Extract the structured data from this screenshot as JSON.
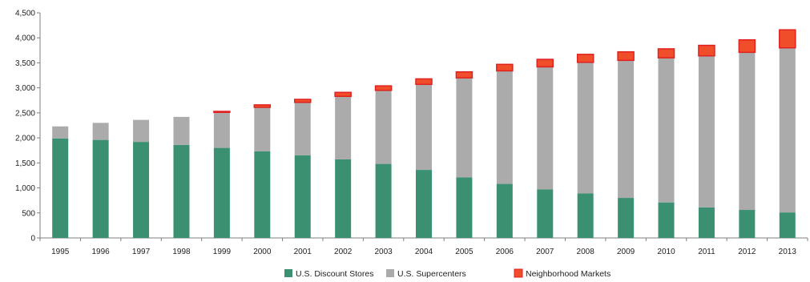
{
  "chart_data": {
    "type": "bar",
    "stacked": true,
    "title": "",
    "xlabel": "",
    "ylabel": "",
    "ylim": [
      0,
      4500
    ],
    "yticks": [
      0,
      500,
      1000,
      1500,
      2000,
      2500,
      3000,
      3500,
      4000,
      4500
    ],
    "ytick_labels": [
      "0",
      "500",
      "1,000",
      "1,500",
      "2,000",
      "2,500",
      "3,000",
      "3,500",
      "4,000",
      "4,500"
    ],
    "grid": false,
    "legend_position": "bottom",
    "categories": [
      "1995",
      "1996",
      "1997",
      "1998",
      "1999",
      "2000",
      "2001",
      "2002",
      "2003",
      "2004",
      "2005",
      "2006",
      "2007",
      "2008",
      "2009",
      "2010",
      "2011",
      "2012",
      "2013"
    ],
    "series": [
      {
        "name": "U.S. Discount Stores",
        "color": "#3a9070",
        "values": [
          1990,
          1960,
          1920,
          1860,
          1800,
          1730,
          1650,
          1570,
          1480,
          1360,
          1210,
          1080,
          970,
          890,
          800,
          710,
          610,
          560,
          510
        ]
      },
      {
        "name": "U.S. Supercenters",
        "color": "#ababab",
        "values": [
          240,
          340,
          440,
          560,
          710,
          880,
          1060,
          1260,
          1470,
          1710,
          1990,
          2260,
          2450,
          2620,
          2750,
          2890,
          3030,
          3150,
          3290
        ]
      },
      {
        "name": "Neighborhood Markets",
        "color": "#f04e2b",
        "stroke": "#e0211f",
        "values": [
          0,
          0,
          0,
          0,
          20,
          50,
          60,
          80,
          90,
          110,
          120,
          130,
          150,
          160,
          170,
          180,
          210,
          250,
          360
        ]
      }
    ]
  }
}
